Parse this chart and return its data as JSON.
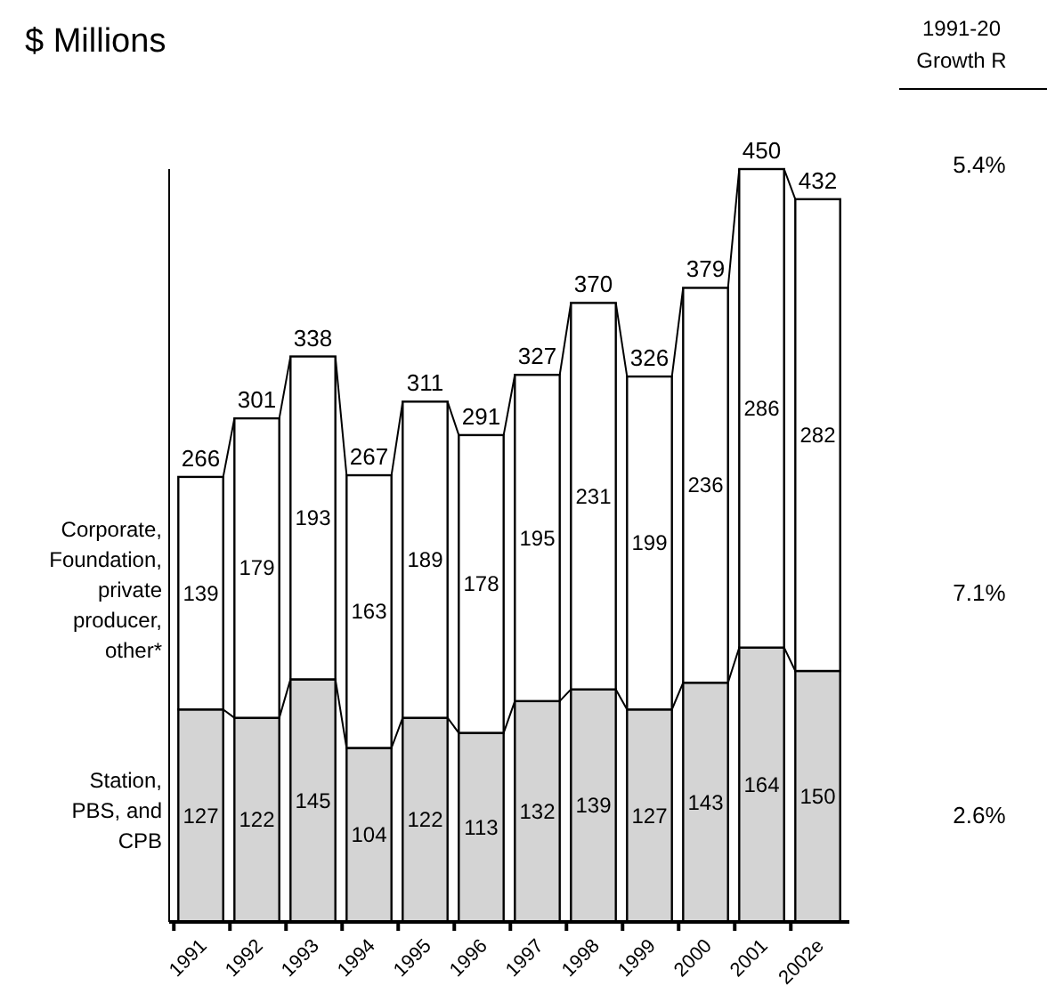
{
  "chart_data": {
    "type": "bar",
    "subtitle": "$ Millions",
    "stacked": true,
    "data_labels": true,
    "categories": [
      "1991",
      "1992",
      "1993",
      "1994",
      "1995",
      "1996",
      "1997",
      "1998",
      "1999",
      "2000",
      "2001",
      "2002e"
    ],
    "series": [
      {
        "name": "Station, PBS, and CPB",
        "color": "#d4d4d4",
        "values": [
          127,
          122,
          145,
          104,
          122,
          113,
          132,
          139,
          127,
          143,
          164,
          150
        ]
      },
      {
        "name": "Corporate, Foundation, private producer, other*",
        "color": "#ffffff",
        "values": [
          139,
          179,
          193,
          163,
          189,
          178,
          195,
          231,
          199,
          236,
          286,
          282
        ]
      }
    ],
    "totals": [
      "266",
      "301",
      "338",
      "267",
      "311",
      "291",
      "327",
      "370",
      "326",
      "379",
      "450",
      "432"
    ],
    "annotations": [
      "1991-20",
      "Growth R",
      "5.4%",
      "7.1%",
      "2.6%"
    ]
  }
}
